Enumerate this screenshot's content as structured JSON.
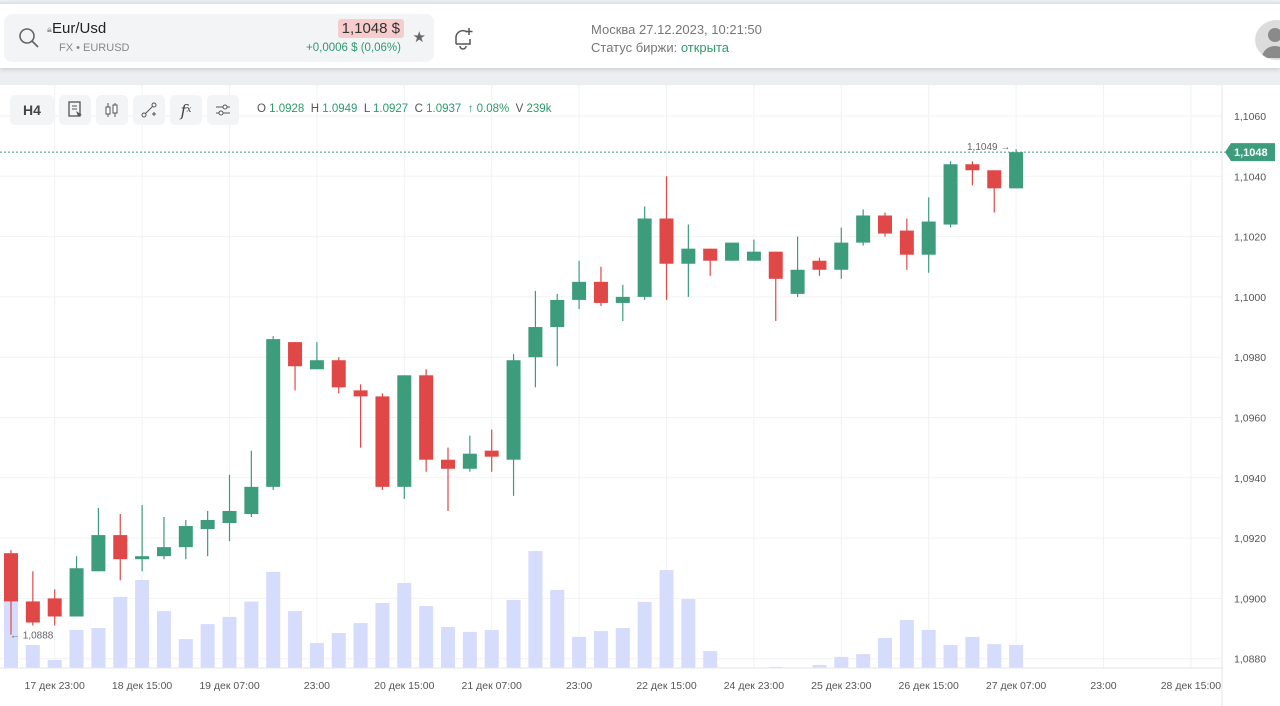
{
  "header": {
    "symbol": "Eur/Usd",
    "subtitle": "FX • EURUSD",
    "price": "1,1048 $",
    "change": "+0,0006 $ (0,06%)",
    "datetime": "Москва 27.12.2023, 10:21:50",
    "status_label": "Статус биржи:",
    "status_value": "открыта"
  },
  "toolbar": {
    "interval": "H4",
    "fx_label": "f",
    "fx_sub": "x"
  },
  "ohlc": {
    "o_label": "O",
    "o": "1.0928",
    "h_label": "H",
    "h": "1.0949",
    "l_label": "L",
    "l": "1.0927",
    "c_label": "C",
    "c": "1.0937",
    "change": "↑ 0.08%",
    "v_label": "V",
    "v": "239k"
  },
  "colors": {
    "up": "#3d9c7b",
    "down": "#e04848",
    "volume": "#d6dcfb",
    "accent": "#3d9c7b"
  },
  "chart_data": {
    "type": "candlestick",
    "ylim": [
      1.0875,
      1.107
    ],
    "y_ticks": [
      "1,1060",
      "1,1040",
      "1,1020",
      "1,1000",
      "1,0980",
      "1,0960",
      "1,0940",
      "1,0920",
      "1,0900",
      "1,0880"
    ],
    "y_tick_values": [
      1.106,
      1.104,
      1.102,
      1.1,
      1.098,
      1.096,
      1.094,
      1.092,
      1.09,
      1.088
    ],
    "x_labels": [
      {
        "i": 2,
        "t": "17 дек 23:00"
      },
      {
        "i": 6,
        "t": "18 дек 15:00"
      },
      {
        "i": 10,
        "t": "19 дек 07:00"
      },
      {
        "i": 14,
        "t": "23:00"
      },
      {
        "i": 18,
        "t": "20 дек 15:00"
      },
      {
        "i": 22,
        "t": "21 дек 07:00"
      },
      {
        "i": 26,
        "t": "23:00"
      },
      {
        "i": 30,
        "t": "22 дек 15:00"
      },
      {
        "i": 34,
        "t": "24 дек 23:00"
      },
      {
        "i": 38,
        "t": "25 дек 23:00"
      },
      {
        "i": 42,
        "t": "26 дек 15:00"
      },
      {
        "i": 46,
        "t": "27 дек 07:00"
      },
      {
        "i": 50,
        "t": "23:00"
      },
      {
        "i": 54,
        "t": "28 дек 15:00"
      }
    ],
    "last_price_label": "1,1048",
    "last_price": 1.1048,
    "high_marker": "1,1049 →",
    "high_value": 1.1049,
    "low_marker": "← 1,0888",
    "low_value": 1.0888,
    "candles": [
      [
        1.0915,
        1.0916,
        1.0888,
        1.0899,
        245
      ],
      [
        1.0899,
        1.0909,
        1.0891,
        1.0892,
        83
      ],
      [
        1.09,
        1.0903,
        1.0891,
        1.0894,
        29
      ],
      [
        1.0894,
        1.0914,
        1.0894,
        1.091,
        137
      ],
      [
        1.0909,
        1.093,
        1.0909,
        1.0921,
        144
      ],
      [
        1.0921,
        1.0928,
        1.0906,
        1.0913,
        256
      ],
      [
        1.0913,
        1.0931,
        1.0909,
        1.0914,
        317
      ],
      [
        1.0914,
        1.0927,
        1.0913,
        1.0917,
        205
      ],
      [
        1.0917,
        1.0926,
        1.0913,
        1.0924,
        104
      ],
      [
        1.0923,
        1.0929,
        1.0914,
        1.0926,
        158
      ],
      [
        1.0925,
        1.0941,
        1.0919,
        1.0929,
        184
      ],
      [
        1.0928,
        1.0949,
        1.0927,
        1.0937,
        239
      ],
      [
        1.0937,
        1.0987,
        1.0936,
        1.0986,
        346
      ],
      [
        1.0985,
        1.0985,
        1.0969,
        1.0977,
        205
      ],
      [
        1.0976,
        1.0985,
        1.0976,
        1.0979,
        90
      ],
      [
        1.0979,
        1.098,
        1.0968,
        1.097,
        126
      ],
      [
        1.0969,
        1.0971,
        1.095,
        1.0967,
        162
      ],
      [
        1.0967,
        1.0968,
        1.0936,
        1.0937,
        234
      ],
      [
        1.0937,
        1.0974,
        1.0933,
        1.0974,
        306
      ],
      [
        1.0974,
        1.0976,
        1.0942,
        1.0946,
        223
      ],
      [
        1.0946,
        1.095,
        1.0929,
        1.0943,
        148
      ],
      [
        1.0943,
        1.0954,
        1.0942,
        1.0948,
        130
      ],
      [
        1.0949,
        1.0956,
        1.0942,
        1.0947,
        137
      ],
      [
        1.0946,
        1.0981,
        1.0934,
        1.0979,
        245
      ],
      [
        1.098,
        1.1002,
        1.097,
        1.099,
        421
      ],
      [
        1.099,
        1.1001,
        1.0977,
        1.0999,
        281
      ],
      [
        1.0999,
        1.1012,
        1.0996,
        1.1005,
        112
      ],
      [
        1.1005,
        1.101,
        1.0997,
        1.0998,
        133
      ],
      [
        1.0998,
        1.1004,
        1.0992,
        1.1,
        144
      ],
      [
        1.1,
        1.103,
        1.0999,
        1.1026,
        238
      ],
      [
        1.1026,
        1.104,
        1.0999,
        1.1011,
        353
      ],
      [
        1.1011,
        1.1024,
        1.1,
        1.1016,
        248
      ],
      [
        1.1016,
        1.1016,
        1.1007,
        1.1012,
        61
      ],
      [
        1.1012,
        1.1018,
        1.1012,
        1.1018,
        0
      ],
      [
        1.1012,
        1.1019,
        1.1012,
        1.1015,
        0
      ],
      [
        1.1015,
        1.1015,
        1.0992,
        1.1006,
        4
      ],
      [
        1.1001,
        1.102,
        1.1,
        1.1009,
        0
      ],
      [
        1.1012,
        1.1013,
        1.1007,
        1.1009,
        11
      ],
      [
        1.1009,
        1.1023,
        1.1006,
        1.1018,
        40
      ],
      [
        1.1018,
        1.1029,
        1.1017,
        1.1027,
        50
      ],
      [
        1.1027,
        1.1028,
        1.102,
        1.1021,
        108
      ],
      [
        1.1022,
        1.1026,
        1.1009,
        1.1014,
        173
      ],
      [
        1.1014,
        1.1033,
        1.1008,
        1.1025,
        137
      ],
      [
        1.1024,
        1.1045,
        1.1023,
        1.1044,
        83
      ],
      [
        1.1044,
        1.1045,
        1.1037,
        1.1042,
        112
      ],
      [
        1.1042,
        1.1042,
        1.1028,
        1.1036,
        86
      ],
      [
        1.1036,
        1.1049,
        1.1036,
        1.1048,
        83
      ]
    ]
  }
}
